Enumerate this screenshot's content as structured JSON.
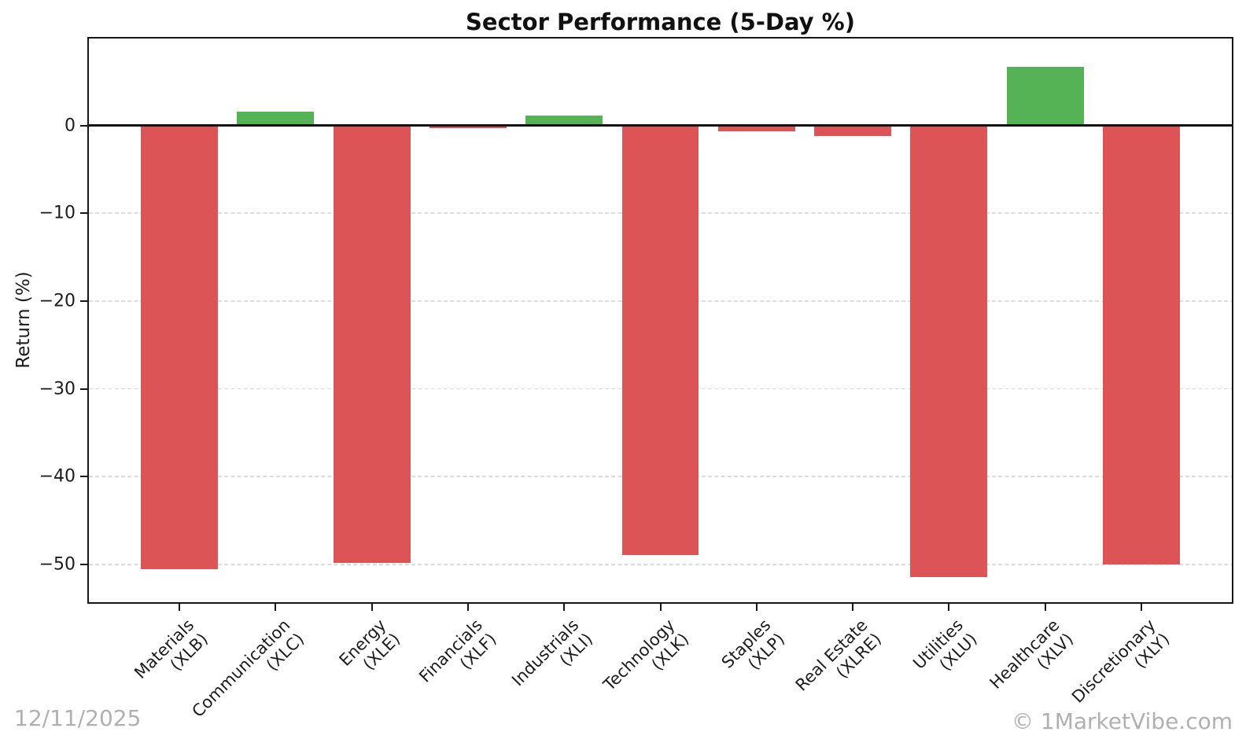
{
  "title": "Sector Performance (5-Day %)",
  "y_axis": {
    "label": "Return (%)"
  },
  "footer": {
    "date": "12/11/2025",
    "watermark": "© 1MarketVibe.com"
  },
  "colors": {
    "positive": "#55b355",
    "negative": "#dc5455",
    "grid": "#dcdcdc",
    "axis": "#161616",
    "text": "#1c1c1c",
    "watermark_text": "#b0b0b0"
  },
  "chart_data": {
    "type": "bar",
    "title": "Sector Performance (5-Day %)",
    "xlabel": "",
    "ylabel": "Return (%)",
    "categories": [
      {
        "name": "Materials",
        "ticker": "(XLB)"
      },
      {
        "name": "Communication",
        "ticker": "(XLC)"
      },
      {
        "name": "Energy",
        "ticker": "(XLE)"
      },
      {
        "name": "Financials",
        "ticker": "(XLF)"
      },
      {
        "name": "Industrials",
        "ticker": "(XLI)"
      },
      {
        "name": "Technology",
        "ticker": "(XLK)"
      },
      {
        "name": "Staples",
        "ticker": "(XLP)"
      },
      {
        "name": "Real Estate",
        "ticker": "(XLRE)"
      },
      {
        "name": "Utilities",
        "ticker": "(XLU)"
      },
      {
        "name": "Healthcare",
        "ticker": "(XLV)"
      },
      {
        "name": "Discretionary",
        "ticker": "(XLY)"
      }
    ],
    "values": [
      -50.5,
      1.6,
      -49.8,
      -0.3,
      1.1,
      -48.9,
      -0.7,
      -1.2,
      -51.4,
      6.7,
      -50.0
    ],
    "ylim": [
      -54.3,
      9.9
    ],
    "yticks": [
      {
        "value": 0,
        "label": "0"
      },
      {
        "value": -10,
        "label": "−10"
      },
      {
        "value": -20,
        "label": "−20"
      },
      {
        "value": -30,
        "label": "−30"
      },
      {
        "value": -40,
        "label": "−40"
      },
      {
        "value": -50,
        "label": "−50"
      }
    ],
    "grid": "horizontal-dashed",
    "bar_color_rule": "green if value >= 0 else red"
  }
}
